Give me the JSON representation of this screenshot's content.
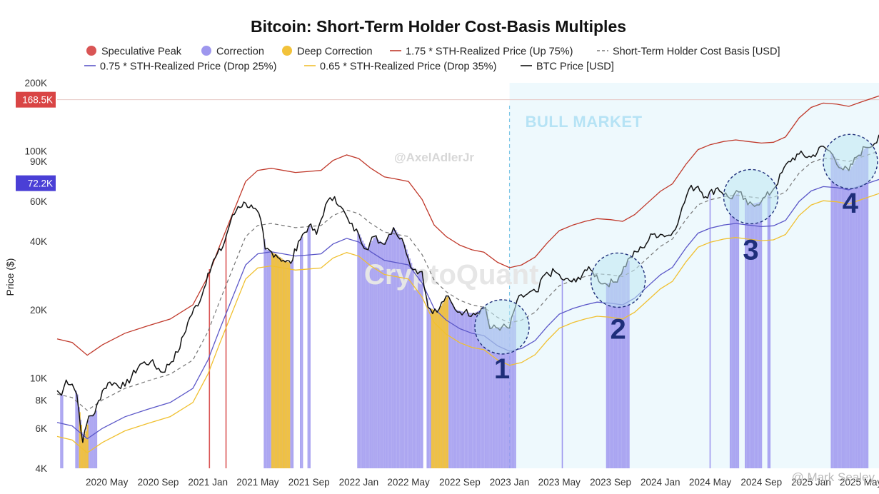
{
  "chart_data": {
    "type": "line",
    "title": "Bitcoin: Short-Term Holder Cost-Basis Multiples",
    "ylabel": "Price ($)",
    "xlabel": "",
    "y_scale": "log",
    "ylim": [
      4000,
      200000
    ],
    "y_ticks": [
      {
        "value": 4000,
        "label": "4K"
      },
      {
        "value": 6000,
        "label": "6K"
      },
      {
        "value": 8000,
        "label": "8K"
      },
      {
        "value": 10000,
        "label": "10K"
      },
      {
        "value": 20000,
        "label": "20K"
      },
      {
        "value": 40000,
        "label": "40K"
      },
      {
        "value": 60000,
        "label": "60K"
      },
      {
        "value": 90000,
        "label": "90K"
      },
      {
        "value": 100000,
        "label": "100K"
      },
      {
        "value": 200000,
        "label": "200K"
      }
    ],
    "x_ticks": [
      {
        "label": "2020 May",
        "date": 2020.33
      },
      {
        "label": "2020 Sep",
        "date": 2020.67
      },
      {
        "label": "2021 Jan",
        "date": 2021.0
      },
      {
        "label": "2021 May",
        "date": 2021.33
      },
      {
        "label": "2021 Sep",
        "date": 2021.67
      },
      {
        "label": "2022 Jan",
        "date": 2022.0
      },
      {
        "label": "2022 May",
        "date": 2022.33
      },
      {
        "label": "2022 Sep",
        "date": 2022.67
      },
      {
        "label": "2023 Jan",
        "date": 2023.0
      },
      {
        "label": "2023 May",
        "date": 2023.33
      },
      {
        "label": "2023 Sep",
        "date": 2023.67
      },
      {
        "label": "2024 Jan",
        "date": 2024.0
      },
      {
        "label": "2024 May",
        "date": 2024.33
      },
      {
        "label": "2024 Sep",
        "date": 2024.67
      },
      {
        "label": "2025 Jan",
        "date": 2025.0
      },
      {
        "label": "2025 May",
        "date": 2025.33
      }
    ],
    "xlim": [
      2020.0,
      2025.45
    ],
    "badges": [
      {
        "label": "168.5K",
        "value": 168500,
        "color": "#d94545"
      },
      {
        "label": "72.2K",
        "value": 72200,
        "color": "#4a3fd6"
      }
    ],
    "legend": [
      {
        "label": "Speculative Peak",
        "kind": "dot",
        "color": "#d95555"
      },
      {
        "label": "Correction",
        "kind": "dot",
        "color": "#9e97ee"
      },
      {
        "label": "Deep Correction",
        "kind": "dot",
        "color": "#f2c23a"
      },
      {
        "label": "1.75 * STH-Realized Price (Up 75%)",
        "kind": "line",
        "color": "#c0392b"
      },
      {
        "label": "Short-Term Holder Cost Basis [USD]",
        "kind": "dash",
        "color": "#777777"
      },
      {
        "label": "0.75 * STH-Realized Price (Drop 25%)",
        "kind": "line",
        "color": "#5b57c8"
      },
      {
        "label": "0.65 * STH-Realized Price (Drop 35%)",
        "kind": "line",
        "color": "#f0c030"
      },
      {
        "label": "BTC Price [USD]",
        "kind": "line",
        "color": "#111111"
      }
    ],
    "sth_cost_basis": [
      [
        2020.0,
        8500
      ],
      [
        2020.1,
        8200
      ],
      [
        2020.2,
        7200
      ],
      [
        2020.3,
        8000
      ],
      [
        2020.45,
        9000
      ],
      [
        2020.6,
        9700
      ],
      [
        2020.75,
        10400
      ],
      [
        2020.9,
        12000
      ],
      [
        2021.0,
        16000
      ],
      [
        2021.08,
        22000
      ],
      [
        2021.17,
        31000
      ],
      [
        2021.25,
        42000
      ],
      [
        2021.33,
        47000
      ],
      [
        2021.42,
        48000
      ],
      [
        2021.5,
        47000
      ],
      [
        2021.58,
        46000
      ],
      [
        2021.67,
        46500
      ],
      [
        2021.75,
        47000
      ],
      [
        2021.83,
        52000
      ],
      [
        2021.92,
        55000
      ],
      [
        2022.0,
        53000
      ],
      [
        2022.08,
        48000
      ],
      [
        2022.17,
        44000
      ],
      [
        2022.25,
        43000
      ],
      [
        2022.33,
        42000
      ],
      [
        2022.42,
        35000
      ],
      [
        2022.5,
        27000
      ],
      [
        2022.58,
        24000
      ],
      [
        2022.67,
        22000
      ],
      [
        2022.75,
        21000
      ],
      [
        2022.83,
        20500
      ],
      [
        2022.92,
        18500
      ],
      [
        2023.0,
        17500
      ],
      [
        2023.08,
        18000
      ],
      [
        2023.17,
        19500
      ],
      [
        2023.25,
        22500
      ],
      [
        2023.33,
        25500
      ],
      [
        2023.42,
        27000
      ],
      [
        2023.5,
        28000
      ],
      [
        2023.58,
        28800
      ],
      [
        2023.67,
        28500
      ],
      [
        2023.75,
        28000
      ],
      [
        2023.83,
        30000
      ],
      [
        2023.92,
        34000
      ],
      [
        2024.0,
        38000
      ],
      [
        2024.08,
        41000
      ],
      [
        2024.17,
        50000
      ],
      [
        2024.25,
        58000
      ],
      [
        2024.33,
        61000
      ],
      [
        2024.42,
        63000
      ],
      [
        2024.5,
        64000
      ],
      [
        2024.58,
        63000
      ],
      [
        2024.67,
        62000
      ],
      [
        2024.75,
        62500
      ],
      [
        2024.83,
        66000
      ],
      [
        2024.92,
        80000
      ],
      [
        2025.0,
        89000
      ],
      [
        2025.08,
        93000
      ],
      [
        2025.17,
        92000
      ],
      [
        2025.25,
        90000
      ],
      [
        2025.33,
        94000
      ],
      [
        2025.45,
        100000
      ]
    ],
    "btc_price": [
      [
        2020.0,
        8800
      ],
      [
        2020.03,
        8400
      ],
      [
        2020.06,
        9800
      ],
      [
        2020.1,
        9400
      ],
      [
        2020.13,
        8500
      ],
      [
        2020.17,
        5200
      ],
      [
        2020.21,
        6800
      ],
      [
        2020.25,
        7000
      ],
      [
        2020.3,
        8800
      ],
      [
        2020.35,
        9600
      ],
      [
        2020.45,
        9200
      ],
      [
        2020.55,
        11500
      ],
      [
        2020.62,
        11800
      ],
      [
        2020.7,
        10600
      ],
      [
        2020.8,
        13000
      ],
      [
        2020.88,
        18500
      ],
      [
        2020.96,
        23000
      ],
      [
        2021.0,
        29000
      ],
      [
        2021.05,
        34000
      ],
      [
        2021.1,
        38000
      ],
      [
        2021.15,
        49000
      ],
      [
        2021.2,
        57000
      ],
      [
        2021.25,
        59000
      ],
      [
        2021.3,
        56000
      ],
      [
        2021.35,
        50000
      ],
      [
        2021.38,
        37000
      ],
      [
        2021.45,
        35000
      ],
      [
        2021.5,
        33000
      ],
      [
        2021.55,
        32000
      ],
      [
        2021.6,
        40000
      ],
      [
        2021.67,
        47000
      ],
      [
        2021.72,
        43000
      ],
      [
        2021.78,
        58000
      ],
      [
        2021.84,
        63000
      ],
      [
        2021.88,
        57000
      ],
      [
        2021.94,
        48000
      ],
      [
        2022.0,
        43000
      ],
      [
        2022.05,
        37000
      ],
      [
        2022.1,
        42000
      ],
      [
        2022.16,
        39000
      ],
      [
        2022.23,
        46000
      ],
      [
        2022.3,
        39000
      ],
      [
        2022.36,
        30000
      ],
      [
        2022.42,
        29500
      ],
      [
        2022.46,
        20500
      ],
      [
        2022.52,
        19500
      ],
      [
        2022.58,
        23000
      ],
      [
        2022.64,
        20000
      ],
      [
        2022.7,
        19500
      ],
      [
        2022.76,
        19300
      ],
      [
        2022.84,
        20500
      ],
      [
        2022.87,
        16500
      ],
      [
        2022.95,
        16800
      ],
      [
        2023.0,
        16600
      ],
      [
        2023.05,
        22000
      ],
      [
        2023.12,
        23500
      ],
      [
        2023.19,
        24000
      ],
      [
        2023.22,
        28000
      ],
      [
        2023.3,
        29500
      ],
      [
        2023.36,
        27000
      ],
      [
        2023.44,
        26500
      ],
      [
        2023.5,
        30000
      ],
      [
        2023.55,
        29500
      ],
      [
        2023.62,
        26000
      ],
      [
        2023.7,
        26500
      ],
      [
        2023.8,
        34000
      ],
      [
        2023.88,
        37500
      ],
      [
        2023.95,
        43000
      ],
      [
        2024.0,
        43000
      ],
      [
        2024.07,
        42500
      ],
      [
        2024.13,
        52000
      ],
      [
        2024.19,
        68000
      ],
      [
        2024.25,
        70000
      ],
      [
        2024.3,
        63000
      ],
      [
        2024.38,
        69000
      ],
      [
        2024.46,
        62000
      ],
      [
        2024.52,
        66000
      ],
      [
        2024.58,
        58000
      ],
      [
        2024.67,
        60000
      ],
      [
        2024.75,
        68000
      ],
      [
        2024.85,
        90000
      ],
      [
        2024.92,
        97000
      ],
      [
        2025.0,
        94000
      ],
      [
        2025.08,
        105000
      ],
      [
        2025.14,
        97000
      ],
      [
        2025.2,
        84000
      ],
      [
        2025.25,
        82000
      ],
      [
        2025.3,
        94000
      ],
      [
        2025.36,
        104000
      ],
      [
        2025.42,
        108000
      ],
      [
        2025.45,
        118000
      ]
    ],
    "regimes": [
      {
        "kind": "correction",
        "start": 2020.02,
        "end": 2020.04
      },
      {
        "kind": "correction",
        "start": 2020.12,
        "end": 2020.26
      },
      {
        "kind": "deep",
        "start": 2020.145,
        "end": 2020.2
      },
      {
        "kind": "peak",
        "start": 2021.01,
        "end": 2021.015
      },
      {
        "kind": "peak",
        "start": 2021.12,
        "end": 2021.125
      },
      {
        "kind": "correction",
        "start": 2021.37,
        "end": 2021.56
      },
      {
        "kind": "deep",
        "start": 2021.42,
        "end": 2021.54
      },
      {
        "kind": "correction",
        "start": 2021.61,
        "end": 2021.63
      },
      {
        "kind": "correction",
        "start": 2021.66,
        "end": 2021.68
      },
      {
        "kind": "correction",
        "start": 2021.99,
        "end": 2022.42
      },
      {
        "kind": "correction",
        "start": 2022.45,
        "end": 2023.04
      },
      {
        "kind": "deep",
        "start": 2022.48,
        "end": 2022.59
      },
      {
        "kind": "correction",
        "start": 2023.35,
        "end": 2023.355
      },
      {
        "kind": "correction",
        "start": 2023.64,
        "end": 2023.79
      },
      {
        "kind": "correction",
        "start": 2024.33,
        "end": 2024.335
      },
      {
        "kind": "correction",
        "start": 2024.46,
        "end": 2024.52
      },
      {
        "kind": "correction",
        "start": 2024.56,
        "end": 2024.67
      },
      {
        "kind": "correction",
        "start": 2024.71,
        "end": 2024.73
      },
      {
        "kind": "correction",
        "start": 2025.13,
        "end": 2025.38
      }
    ],
    "annotations": [
      {
        "label": "1",
        "date": 2022.95,
        "value": 16800
      },
      {
        "label": "2",
        "date": 2023.72,
        "value": 27000
      },
      {
        "label": "3",
        "date": 2024.6,
        "value": 63000
      },
      {
        "label": "4",
        "date": 2025.26,
        "value": 90000
      }
    ],
    "regions": [
      {
        "label": "BULL MARKET",
        "start": 2023.0,
        "end": 2025.45
      }
    ],
    "watermarks": [
      "@AxelAdlerJr",
      "CryptoQuant"
    ]
  },
  "footer": {
    "credit": "@ Mark Sealey"
  }
}
